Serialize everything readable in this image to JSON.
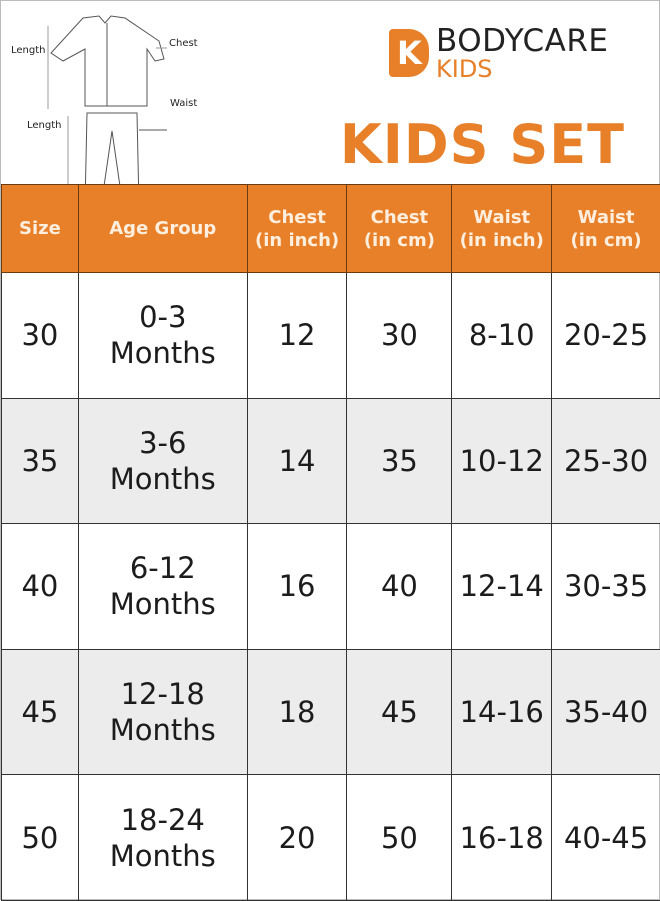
{
  "diagram": {
    "labels": {
      "top_length": "Length",
      "chest": "Chest",
      "waist": "Waist",
      "bottom_length": "Length"
    }
  },
  "brand": {
    "line1": "BODYCARE",
    "line2": "KIDS",
    "logo_letter": "K"
  },
  "title": "KIDS SET",
  "colors": {
    "accent": "#e8802a",
    "alt_row": "#ececec"
  },
  "table": {
    "headers": [
      [
        "Size"
      ],
      [
        "Age Group"
      ],
      [
        "Chest",
        "(in inch)"
      ],
      [
        "Chest",
        "(in cm)"
      ],
      [
        "Waist",
        "(in inch)"
      ],
      [
        "Waist",
        "(in cm)"
      ]
    ],
    "rows": [
      {
        "size": "30",
        "age": [
          "0-3",
          "Months"
        ],
        "chest_in": "12",
        "chest_cm": "30",
        "waist_in": "8-10",
        "waist_cm": "20-25"
      },
      {
        "size": "35",
        "age": [
          "3-6",
          "Months"
        ],
        "chest_in": "14",
        "chest_cm": "35",
        "waist_in": "10-12",
        "waist_cm": "25-30"
      },
      {
        "size": "40",
        "age": [
          "6-12",
          "Months"
        ],
        "chest_in": "16",
        "chest_cm": "40",
        "waist_in": "12-14",
        "waist_cm": "30-35"
      },
      {
        "size": "45",
        "age": [
          "12-18",
          "Months"
        ],
        "chest_in": "18",
        "chest_cm": "45",
        "waist_in": "14-16",
        "waist_cm": "35-40"
      },
      {
        "size": "50",
        "age": [
          "18-24",
          "Months"
        ],
        "chest_in": "20",
        "chest_cm": "50",
        "waist_in": "16-18",
        "waist_cm": "40-45"
      }
    ]
  }
}
